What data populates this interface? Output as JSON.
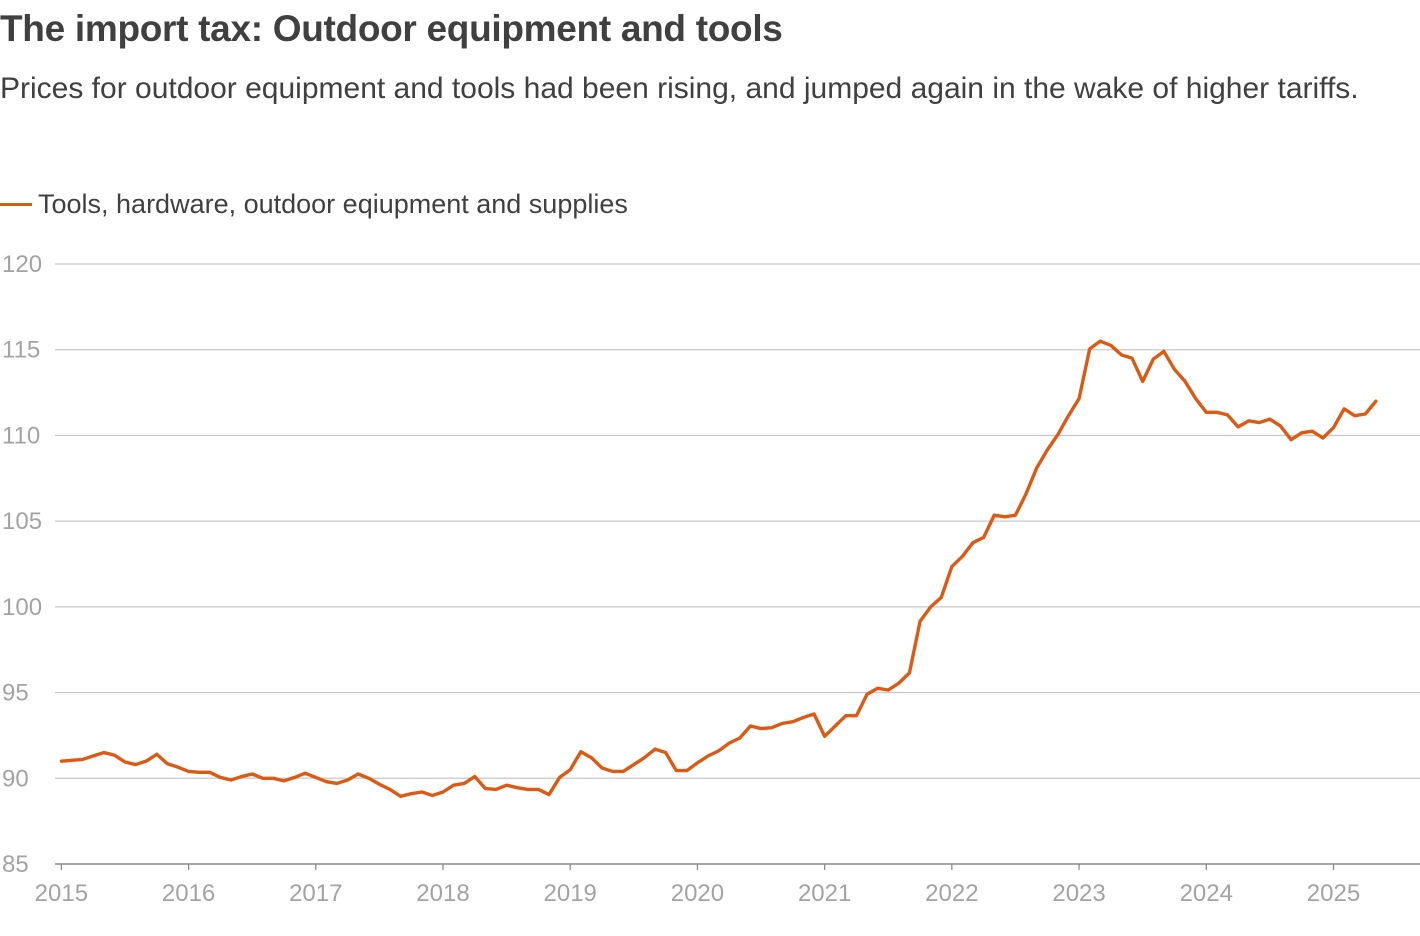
{
  "chart_data": {
    "type": "line",
    "title": "The import tax: Outdoor equipment and tools",
    "subtitle": "Prices for outdoor equipment and tools had been rising, and jumped again in the wake of higher tariffs.",
    "xlabel": "",
    "ylabel": "",
    "ylim": [
      85,
      120
    ],
    "yticks": [
      85,
      90,
      95,
      100,
      105,
      110,
      115,
      120
    ],
    "xlim": [
      2014.95,
      2025.68
    ],
    "xticks": [
      2015,
      2016,
      2017,
      2018,
      2019,
      2020,
      2021,
      2022,
      2023,
      2024,
      2025
    ],
    "xtick_labels": [
      "2015",
      "2016",
      "2017",
      "2018",
      "2019",
      "2020",
      "2021",
      "2022",
      "2023",
      "2024",
      "2025"
    ],
    "grid": true,
    "legend_position": "top-left",
    "series": [
      {
        "name": "Tools, hardware, outdoor eqiupment and supplies",
        "color": "#dc5a14",
        "x_start": 2015.0,
        "x_step_months": 1,
        "values": [
          91.0,
          91.05,
          91.1,
          91.3,
          91.5,
          91.35,
          90.95,
          90.8,
          91.0,
          91.4,
          90.85,
          90.65,
          90.4,
          90.35,
          90.35,
          90.05,
          89.9,
          90.1,
          90.25,
          90.0,
          90.0,
          89.85,
          90.05,
          90.3,
          90.05,
          89.8,
          89.7,
          89.9,
          90.25,
          90.0,
          89.65,
          89.35,
          88.95,
          89.1,
          89.2,
          89.0,
          89.2,
          89.6,
          89.7,
          90.1,
          89.4,
          89.35,
          89.6,
          89.45,
          89.35,
          89.35,
          89.05,
          90.05,
          90.5,
          91.55,
          91.2,
          90.6,
          90.4,
          90.4,
          90.8,
          91.2,
          91.7,
          91.5,
          90.45,
          90.45,
          90.9,
          91.3,
          91.6,
          92.05,
          92.35,
          93.05,
          92.9,
          92.95,
          93.2,
          93.3,
          93.55,
          93.75,
          92.45,
          93.05,
          93.65,
          93.65,
          94.9,
          95.25,
          95.15,
          95.55,
          96.15,
          99.15,
          100.0,
          100.55,
          102.35,
          102.95,
          103.75,
          104.05,
          105.35,
          105.25,
          105.35,
          106.6,
          108.1,
          109.15,
          110.05,
          111.15,
          112.15,
          115.05,
          115.5,
          115.25,
          114.7,
          114.5,
          113.15,
          114.45,
          114.9,
          113.85,
          113.15,
          112.15,
          111.35,
          111.35,
          111.2,
          110.5,
          110.85,
          110.75,
          110.95,
          110.55,
          109.75,
          110.15,
          110.25,
          109.85,
          110.45,
          111.55,
          111.15,
          111.25,
          112.0
        ]
      }
    ]
  },
  "legend": {
    "label": "Tools, hardware, outdoor eqiupment and supplies"
  },
  "colors": {
    "grid": "#c9c9c9",
    "tick_text": "#a3a3a3",
    "title_text": "#404040"
  }
}
